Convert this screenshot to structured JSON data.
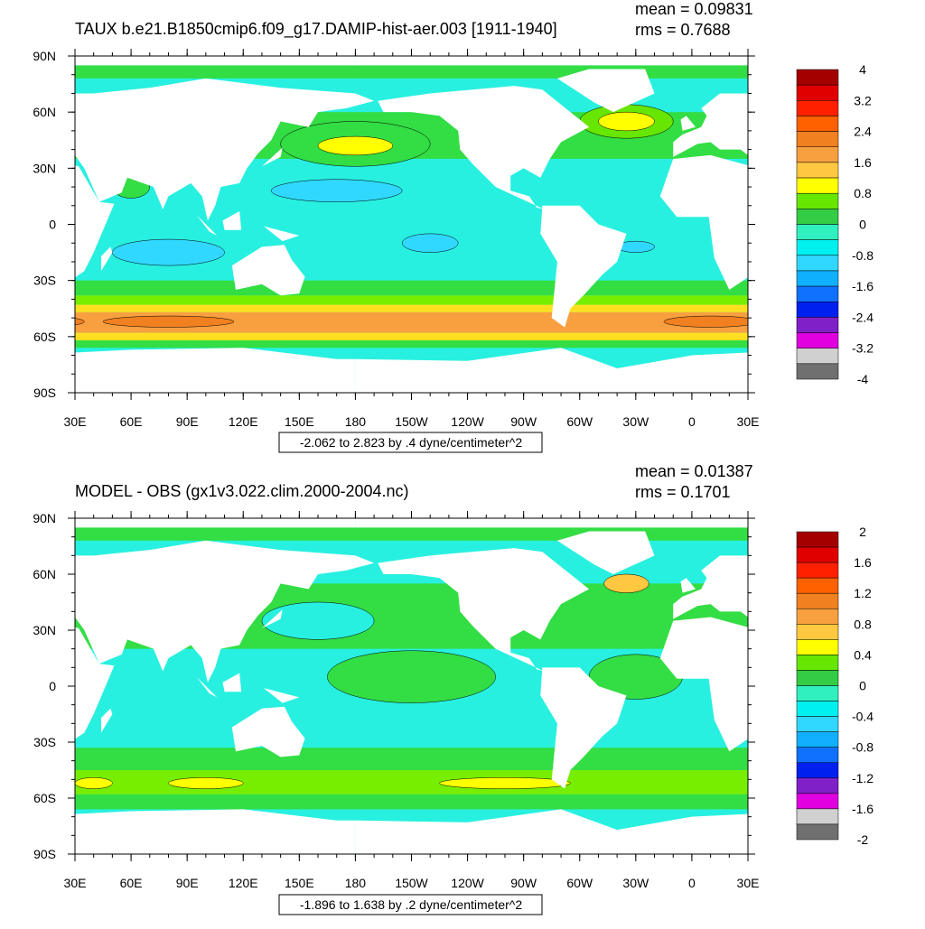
{
  "panels": [
    {
      "title": "TAUX b.e21.B1850cmip6.f09_g17.DAMIP-hist-aer.003 [1911-1940]",
      "mean": "mean = 0.09831",
      "rms": "rms = 0.7688",
      "y_labels": [
        "90N",
        "60N",
        "30N",
        "0",
        "30S",
        "60S",
        "90S"
      ],
      "x_labels": [
        "30E",
        "60E",
        "90E",
        "120E",
        "150E",
        "180",
        "150W",
        "120W",
        "90W",
        "60W",
        "30W",
        "0",
        "30E"
      ],
      "range_note": "-2.062 to 2.823 by .4 dyne/centimeter^2",
      "colorbar": {
        "labels": [
          4,
          3.2,
          2.4,
          1.6,
          0.8,
          0,
          -0.8,
          -1.6,
          -2.4,
          -3.2,
          -4
        ],
        "colors": [
          "#a50000",
          "#e00000",
          "#ff2000",
          "#ff6000",
          "#f08020",
          "#f8a040",
          "#ffc840",
          "#ffff00",
          "#66e600",
          "#33cc44",
          "#30f0c0",
          "#00f0f0",
          "#30d8ff",
          "#10b0ff",
          "#1070ff",
          "#0020f0",
          "#8020c8",
          "#e000e0",
          "#d0d0d0",
          "#707070"
        ]
      }
    },
    {
      "title": "MODEL - OBS (gx1v3.022.clim.2000-2004.nc)",
      "mean": "mean = 0.01387",
      "rms": "rms = 0.1701",
      "y_labels": [
        "90N",
        "60N",
        "30N",
        "0",
        "30S",
        "60S",
        "90S"
      ],
      "x_labels": [
        "30E",
        "60E",
        "90E",
        "120E",
        "150E",
        "180",
        "150W",
        "120W",
        "90W",
        "60W",
        "30W",
        "0",
        "30E"
      ],
      "range_note": "-1.896 to 1.638 by .2 dyne/centimeter^2",
      "colorbar": {
        "labels": [
          2,
          1.6,
          1.2,
          0.8,
          0.4,
          0,
          -0.4,
          -0.8,
          -1.2,
          -1.6,
          -2
        ],
        "colors": [
          "#a50000",
          "#e00000",
          "#ff2000",
          "#ff6000",
          "#f08020",
          "#f8a040",
          "#ffc840",
          "#ffff00",
          "#66e600",
          "#33cc44",
          "#30f0c0",
          "#00f0f0",
          "#30d8ff",
          "#10b0ff",
          "#1070ff",
          "#0020f0",
          "#8020c8",
          "#e000e0",
          "#d0d0d0",
          "#707070"
        ]
      }
    }
  ]
}
